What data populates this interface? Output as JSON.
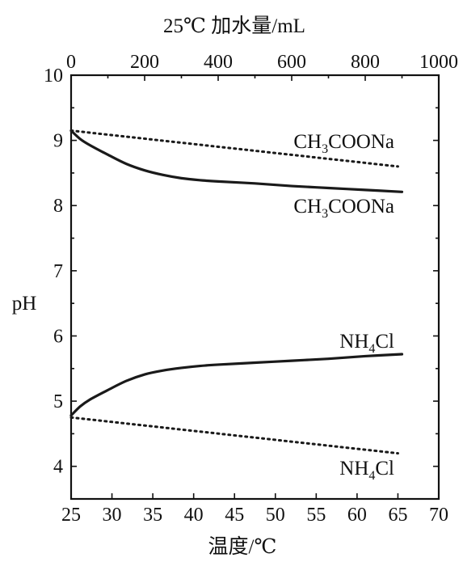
{
  "chart_data": {
    "type": "line",
    "top_axis": {
      "label": "25℃ 加水量/mL",
      "range": [
        0,
        1000
      ],
      "ticks": [
        0,
        200,
        400,
        600,
        800,
        1000
      ],
      "tick_labels": [
        "0",
        "200",
        "400",
        "600",
        "800",
        "1000"
      ]
    },
    "bottom_axis": {
      "label": "温度/℃",
      "range": [
        25,
        70
      ],
      "ticks": [
        25,
        30,
        35,
        40,
        45,
        50,
        55,
        60,
        65,
        70
      ],
      "tick_labels": [
        "25",
        "30",
        "35",
        "40",
        "45",
        "50",
        "55",
        "60",
        "65",
        "70"
      ]
    },
    "y_axis": {
      "label": "pH",
      "range": [
        3.5,
        10
      ],
      "ticks": [
        4,
        5,
        6,
        7,
        8,
        9,
        10
      ],
      "tick_labels": [
        "4",
        "5",
        "6",
        "7",
        "8",
        "9",
        "10"
      ]
    },
    "grid": false,
    "series": [
      {
        "name": "CH₃COONa",
        "label_text": {
          "base": "CH",
          "sub1": "3",
          "rest": "COONa"
        },
        "axis": "temperature",
        "style": "dotted",
        "x": [
          25,
          65
        ],
        "y": [
          9.15,
          8.6
        ]
      },
      {
        "name": "CH₃COONa",
        "label_text": {
          "base": "CH",
          "sub1": "3",
          "rest": "COONa"
        },
        "axis": "water",
        "style": "solid",
        "x": [
          0,
          25,
          50,
          100,
          150,
          200,
          250,
          300,
          350,
          400,
          500,
          600,
          700,
          800,
          900
        ],
        "y": [
          9.15,
          9.02,
          8.93,
          8.78,
          8.64,
          8.54,
          8.47,
          8.42,
          8.39,
          8.37,
          8.34,
          8.3,
          8.27,
          8.24,
          8.21
        ]
      },
      {
        "name": "NH₄Cl",
        "label_text": {
          "base": "NH",
          "sub1": "4",
          "rest": "Cl"
        },
        "axis": "water",
        "style": "solid",
        "x": [
          0,
          25,
          50,
          100,
          150,
          200,
          250,
          300,
          350,
          400,
          500,
          600,
          700,
          800,
          900
        ],
        "y": [
          4.78,
          4.92,
          5.02,
          5.17,
          5.31,
          5.41,
          5.47,
          5.51,
          5.54,
          5.56,
          5.59,
          5.62,
          5.65,
          5.69,
          5.72
        ]
      },
      {
        "name": "NH₄Cl",
        "label_text": {
          "base": "NH",
          "sub1": "4",
          "rest": "Cl"
        },
        "axis": "temperature",
        "style": "dotted",
        "x": [
          25,
          65
        ],
        "y": [
          4.75,
          4.2
        ]
      }
    ]
  }
}
